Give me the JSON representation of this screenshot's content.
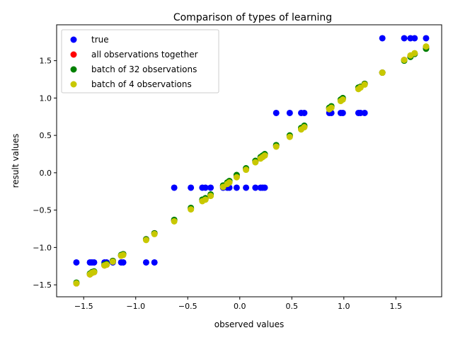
{
  "chart_data": {
    "type": "scatter",
    "title": "Comparison of types of learning",
    "xlabel": "observed values",
    "ylabel": "result values",
    "xlim": [
      -1.76,
      1.94
    ],
    "ylim": [
      -1.66,
      1.98
    ],
    "xticks": [
      -1.5,
      -1.0,
      -0.5,
      0.0,
      0.5,
      1.0,
      1.5
    ],
    "xtick_labels": [
      "−1.5",
      "−1.0",
      "−0.5",
      "0.0",
      "0.5",
      "1.0",
      "1.5"
    ],
    "yticks": [
      -1.5,
      -1.0,
      -0.5,
      0.0,
      0.5,
      1.0,
      1.5
    ],
    "ytick_labels": [
      "−1.5",
      "−1.0",
      "−0.5",
      "0.0",
      "0.5",
      "1.0",
      "1.5"
    ],
    "grid": false,
    "legend_position": "upper left",
    "x": [
      -1.57,
      -1.44,
      -1.42,
      -1.4,
      -1.3,
      -1.28,
      -1.22,
      -1.14,
      -1.12,
      -0.9,
      -0.82,
      -0.63,
      -0.47,
      -0.36,
      -0.33,
      -0.28,
      -0.16,
      -0.12,
      -0.1,
      -0.03,
      0.06,
      0.15,
      0.2,
      0.22,
      0.24,
      0.35,
      0.48,
      0.59,
      0.62,
      0.86,
      0.88,
      0.97,
      0.99,
      1.14,
      1.16,
      1.2,
      1.37,
      1.58,
      1.64,
      1.68,
      1.79
    ],
    "series": [
      {
        "name": "true",
        "color": "#0000ff",
        "y": [
          -1.2,
          -1.2,
          -1.2,
          -1.2,
          -1.2,
          -1.2,
          -1.2,
          -1.2,
          -1.2,
          -1.2,
          -1.2,
          -0.2,
          -0.2,
          -0.2,
          -0.2,
          -0.2,
          -0.2,
          -0.2,
          -0.2,
          -0.2,
          -0.2,
          -0.2,
          -0.2,
          -0.2,
          -0.2,
          0.8,
          0.8,
          0.8,
          0.8,
          0.8,
          0.8,
          0.8,
          0.8,
          0.8,
          0.8,
          0.8,
          1.8,
          1.8,
          1.8,
          1.8,
          1.8
        ]
      },
      {
        "name": "all observations together",
        "color": "#ff0000",
        "y": [
          -1.48,
          -1.36,
          -1.34,
          -1.33,
          -1.24,
          -1.23,
          -1.18,
          -1.11,
          -1.09,
          -0.89,
          -0.81,
          -0.64,
          -0.48,
          -0.37,
          -0.35,
          -0.3,
          -0.18,
          -0.14,
          -0.12,
          -0.05,
          0.05,
          0.15,
          0.2,
          0.22,
          0.24,
          0.36,
          0.49,
          0.59,
          0.62,
          0.86,
          0.88,
          0.97,
          0.99,
          1.13,
          1.15,
          1.19,
          1.34,
          1.51,
          1.56,
          1.59,
          1.68
        ]
      },
      {
        "name": "batch of 32 observations",
        "color": "#008000",
        "y": [
          -1.47,
          -1.35,
          -1.33,
          -1.32,
          -1.23,
          -1.22,
          -1.18,
          -1.1,
          -1.09,
          -0.89,
          -0.81,
          -0.63,
          -0.47,
          -0.36,
          -0.34,
          -0.29,
          -0.17,
          -0.13,
          -0.11,
          -0.03,
          0.06,
          0.16,
          0.21,
          0.23,
          0.25,
          0.37,
          0.5,
          0.6,
          0.63,
          0.87,
          0.89,
          0.98,
          1.0,
          1.14,
          1.15,
          1.19,
          1.34,
          1.5,
          1.55,
          1.59,
          1.66
        ]
      },
      {
        "name": "batch of 4 observations",
        "color": "#c8c800",
        "y": [
          -1.48,
          -1.36,
          -1.34,
          -1.33,
          -1.24,
          -1.23,
          -1.19,
          -1.11,
          -1.1,
          -0.9,
          -0.82,
          -0.65,
          -0.49,
          -0.38,
          -0.36,
          -0.31,
          -0.19,
          -0.15,
          -0.13,
          -0.06,
          0.04,
          0.14,
          0.19,
          0.21,
          0.23,
          0.35,
          0.48,
          0.58,
          0.61,
          0.85,
          0.87,
          0.96,
          0.98,
          1.12,
          1.14,
          1.18,
          1.34,
          1.51,
          1.57,
          1.6,
          1.69
        ]
      }
    ]
  }
}
